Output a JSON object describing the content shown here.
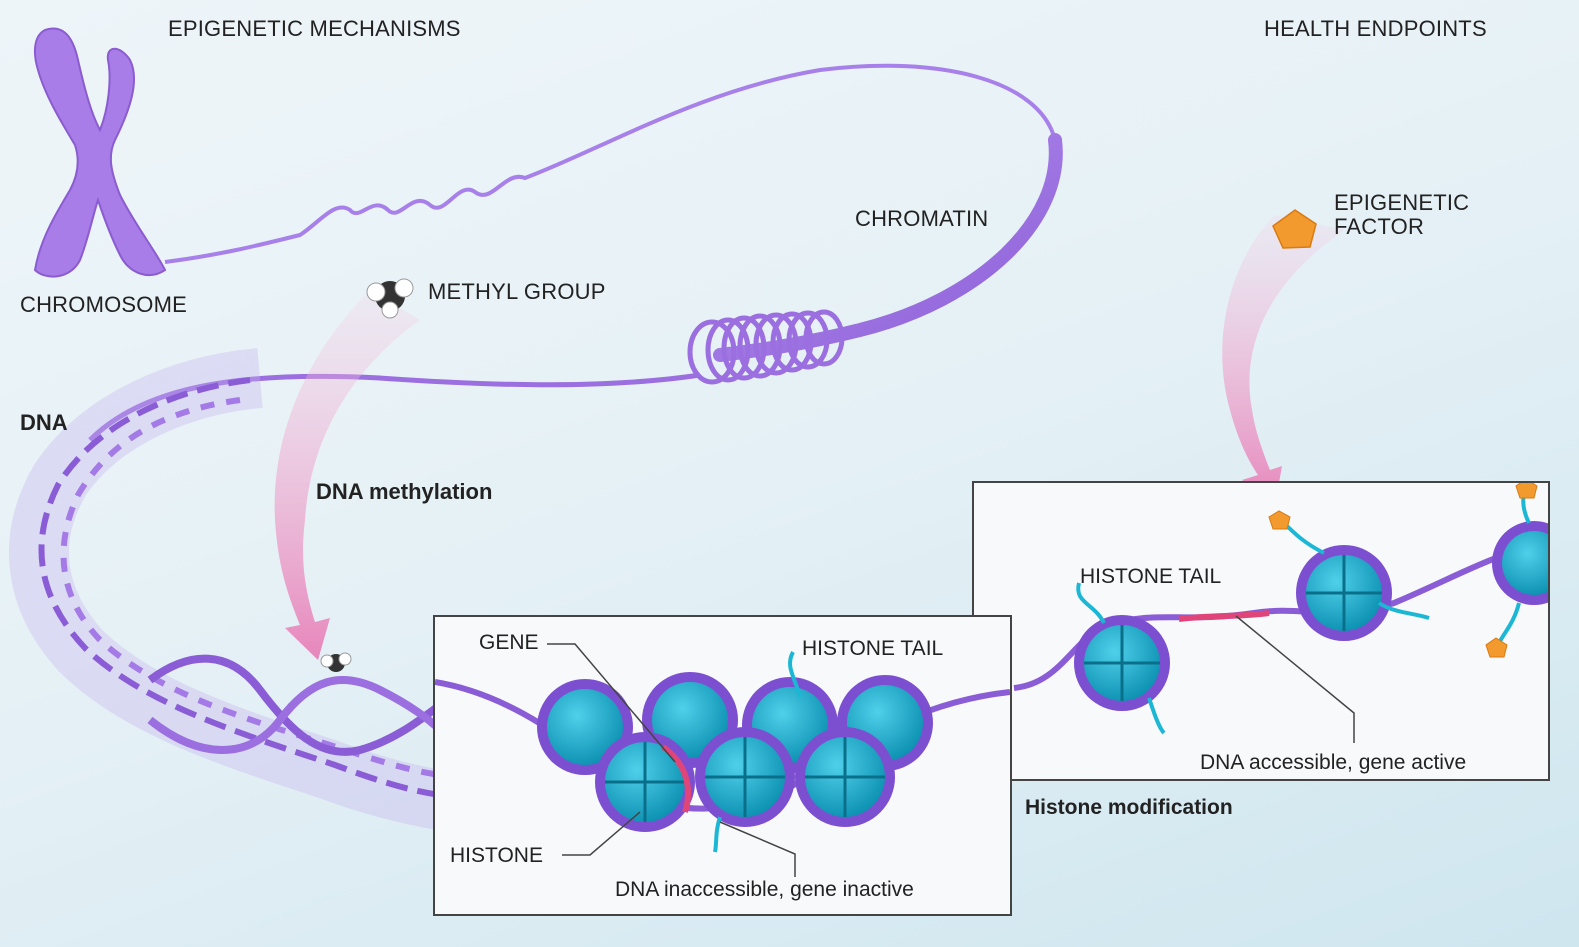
{
  "headers": {
    "left": "EPIGENETIC MECHANISMS",
    "right": "HEALTH ENDPOINTS"
  },
  "labels": {
    "chromosome": "CHROMOSOME",
    "chromatin": "CHROMATIN",
    "methyl_group": "METHYL GROUP",
    "dna": "DNA",
    "dna_methylation": "DNA methylation",
    "epigenetic_factor_line1": "EPIGENETIC",
    "epigenetic_factor_line2": "FACTOR",
    "histone_modification": "Histone modification"
  },
  "panel_inactive": {
    "gene": "GENE",
    "histone_tail": "HISTONE TAIL",
    "histone": "HISTONE",
    "caption": "DNA inaccessible, gene inactive"
  },
  "panel_active": {
    "histone_tail": "HISTONE TAIL",
    "caption": "DNA accessible, gene active"
  },
  "colors": {
    "chromatin_purple": "#9b6fe0",
    "histone_teal": "#16a9c9",
    "gene_pink": "#e0457a",
    "factor_orange": "#f39a2e",
    "tail_cyan": "#1bb7d4"
  }
}
